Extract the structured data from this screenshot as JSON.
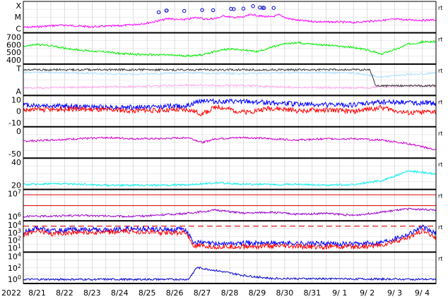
{
  "chart_data": {
    "type": "line",
    "year_label": "2022",
    "x_dates": [
      "8/21",
      "8/22",
      "8/23",
      "8/24",
      "8/25",
      "8/26",
      "8/27",
      "8/28",
      "8/29",
      "8/30",
      "8/31",
      "9/ 1",
      "9/ 2",
      "9/ 3",
      "9/ 4"
    ],
    "corner_mark": "rt",
    "grid": true,
    "panels": [
      {
        "id": "flare",
        "tick_labels": [
          "X",
          "M",
          "C"
        ],
        "series": [
          {
            "color": "#ff00ff",
            "profile": [
              [
                0,
                0.88
              ],
              [
                0.5,
                0.86
              ],
              [
                1,
                0.82
              ],
              [
                1.5,
                0.8
              ],
              [
                2,
                0.83
              ],
              [
                2.5,
                0.86
              ],
              [
                3,
                0.84
              ],
              [
                3.5,
                0.82
              ],
              [
                4,
                0.78
              ],
              [
                4.5,
                0.72
              ],
              [
                5,
                0.62
              ],
              [
                5.3,
                0.55
              ],
              [
                5.6,
                0.6
              ],
              [
                6,
                0.58
              ],
              [
                6.3,
                0.5
              ],
              [
                6.6,
                0.58
              ],
              [
                7,
                0.55
              ],
              [
                7.3,
                0.45
              ],
              [
                7.6,
                0.52
              ],
              [
                8,
                0.5
              ],
              [
                8.3,
                0.4
              ],
              [
                8.6,
                0.46
              ],
              [
                9,
                0.5
              ],
              [
                9.3,
                0.42
              ],
              [
                9.6,
                0.55
              ],
              [
                10,
                0.62
              ],
              [
                10.5,
                0.66
              ],
              [
                11,
                0.68
              ],
              [
                11.5,
                0.68
              ],
              [
                12,
                0.7
              ],
              [
                12.5,
                0.66
              ],
              [
                13,
                0.62
              ],
              [
                13.5,
                0.58
              ],
              [
                14,
                0.6
              ],
              [
                14.5,
                0.62
              ],
              [
                15,
                0.6
              ]
            ]
          }
        ],
        "markers_x": [
          4.92,
          5.2,
          5.21,
          5.85,
          6.5,
          6.9,
          7.55,
          7.65,
          8.0,
          8.35,
          8.6,
          8.7,
          8.75,
          9.1
        ]
      },
      {
        "id": "wind_speed",
        "tick_labels": [
          "700",
          "600",
          "500",
          "400"
        ],
        "y_range": [
          300,
          750
        ],
        "series": [
          {
            "color": "#00ee00",
            "profile": [
              [
                0,
                560
              ],
              [
                0.5,
                590
              ],
              [
                1,
                570
              ],
              [
                1.5,
                530
              ],
              [
                2,
                500
              ],
              [
                2.5,
                480
              ],
              [
                3,
                470
              ],
              [
                3.5,
                440
              ],
              [
                4,
                430
              ],
              [
                4.5,
                420
              ],
              [
                5,
                420
              ],
              [
                5.5,
                410
              ],
              [
                6,
                400
              ],
              [
                6.5,
                420
              ],
              [
                7,
                480
              ],
              [
                7.5,
                520
              ],
              [
                8,
                500
              ],
              [
                8.5,
                470
              ],
              [
                9,
                540
              ],
              [
                9.5,
                600
              ],
              [
                10,
                620
              ],
              [
                10.5,
                600
              ],
              [
                11,
                580
              ],
              [
                11.5,
                560
              ],
              [
                12,
                540
              ],
              [
                12.5,
                500
              ],
              [
                13,
                430
              ],
              [
                13.3,
                480
              ],
              [
                13.6,
                520
              ],
              [
                14,
                600
              ],
              [
                14.5,
                630
              ],
              [
                15,
                640
              ]
            ]
          }
        ]
      },
      {
        "id": "t_a",
        "tick_labels": [
          "T",
          "A"
        ],
        "series": [
          {
            "color": "#aaddff",
            "profile": [
              [
                0,
                0.22
              ],
              [
                2,
                0.25
              ],
              [
                4,
                0.3
              ],
              [
                6,
                0.24
              ],
              [
                8,
                0.28
              ],
              [
                10,
                0.23
              ],
              [
                12,
                0.25
              ],
              [
                13,
                0.4
              ],
              [
                14,
                0.3
              ],
              [
                15,
                0.26
              ]
            ]
          },
          {
            "color": "#ffaaee",
            "profile": [
              [
                0,
                0.8
              ],
              [
                4,
                0.75
              ],
              [
                6,
                0.7
              ],
              [
                8,
                0.72
              ],
              [
                10,
                0.78
              ],
              [
                12.6,
                0.8
              ],
              [
                13,
                0.75
              ],
              [
                15,
                0.72
              ]
            ]
          },
          {
            "color": "#333333",
            "profile": [
              [
                0,
                0.13
              ],
              [
                12.6,
                0.13
              ],
              [
                12.8,
                0.72
              ],
              [
                15,
                0.72
              ]
            ]
          }
        ]
      },
      {
        "id": "b_field",
        "tick_labels": [
          "10",
          "0",
          "-10"
        ],
        "y_range": [
          -18,
          15
        ],
        "series": [
          {
            "color": "#0000ff",
            "profile": [
              [
                0,
                6
              ],
              [
                2,
                4
              ],
              [
                4,
                3
              ],
              [
                6,
                5
              ],
              [
                6.5,
                12
              ],
              [
                7,
                10
              ],
              [
                8,
                10
              ],
              [
                9,
                9
              ],
              [
                10,
                7
              ],
              [
                11,
                6
              ],
              [
                12,
                6
              ],
              [
                13,
                10
              ],
              [
                14,
                9
              ],
              [
                15,
                8
              ]
            ]
          },
          {
            "color": "#ff0000",
            "profile": [
              [
                0,
                0
              ],
              [
                2,
                1
              ],
              [
                4,
                -1
              ],
              [
                6,
                0
              ],
              [
                6.5,
                -5
              ],
              [
                7,
                4
              ],
              [
                8,
                -3
              ],
              [
                9,
                2
              ],
              [
                10,
                -1
              ],
              [
                11,
                0
              ],
              [
                12,
                -2
              ],
              [
                13,
                3
              ],
              [
                14,
                -4
              ],
              [
                15,
                -2
              ]
            ]
          }
        ]
      },
      {
        "id": "theta",
        "tick_labels": [
          "0",
          "-50"
        ],
        "y_range": [
          -90,
          20
        ],
        "series": [
          {
            "color": "#cc00cc",
            "profile": [
              [
                0,
                -30
              ],
              [
                1,
                -25
              ],
              [
                2,
                -20
              ],
              [
                3,
                -15
              ],
              [
                4,
                -20
              ],
              [
                5,
                -20
              ],
              [
                6,
                -15
              ],
              [
                6.5,
                -35
              ],
              [
                7,
                -20
              ],
              [
                8,
                -15
              ],
              [
                9,
                -20
              ],
              [
                10,
                -25
              ],
              [
                11,
                -20
              ],
              [
                12,
                -20
              ],
              [
                13,
                -25
              ],
              [
                14,
                -40
              ],
              [
                15,
                -65
              ]
            ]
          }
        ]
      },
      {
        "id": "density",
        "tick_labels": [
          "40",
          "20"
        ],
        "y_range": [
          0,
          50
        ],
        "series": [
          {
            "color": "#00eeee",
            "profile": [
              [
                0,
                5
              ],
              [
                1,
                7
              ],
              [
                2,
                6
              ],
              [
                3,
                4
              ],
              [
                4,
                4
              ],
              [
                5,
                4
              ],
              [
                6,
                5
              ],
              [
                7,
                8
              ],
              [
                8,
                6
              ],
              [
                9,
                5
              ],
              [
                10,
                6
              ],
              [
                11,
                4
              ],
              [
                12,
                5
              ],
              [
                13,
                12
              ],
              [
                14,
                30
              ],
              [
                14.5,
                28
              ],
              [
                15,
                24
              ]
            ]
          }
        ]
      },
      {
        "id": "temperature",
        "tick_labels": [
          "10^7",
          "10^6"
        ],
        "reference_lines": [
          7.0,
          6.0
        ],
        "y_range": [
          4.8,
          7.3
        ],
        "series": [
          {
            "color": "#9900cc",
            "profile": [
              [
                0,
                5.0
              ],
              [
                2,
                5.1
              ],
              [
                4,
                5.0
              ],
              [
                6,
                5.3
              ],
              [
                7,
                5.6
              ],
              [
                8,
                5.3
              ],
              [
                9,
                5.4
              ],
              [
                10,
                5.2
              ],
              [
                11,
                5.3
              ],
              [
                12,
                5.1
              ],
              [
                13,
                5.4
              ],
              [
                14,
                5.7
              ],
              [
                15,
                5.6
              ]
            ]
          }
        ]
      },
      {
        "id": "proton_flux",
        "tick_labels": [
          "10^4",
          "10^3",
          "10^2",
          "10^1"
        ],
        "dashed_line": 4.0,
        "y_range": [
          0.3,
          4.5
        ],
        "series": [
          {
            "color": "#0000ff",
            "profile": [
              [
                0,
                3.0
              ],
              [
                0.5,
                3.8
              ],
              [
                1,
                3.2
              ],
              [
                2,
                3.5
              ],
              [
                3,
                3.4
              ],
              [
                4,
                3.6
              ],
              [
                5,
                3.5
              ],
              [
                5.9,
                3.5
              ],
              [
                6.2,
                1.5
              ],
              [
                7,
                1.3
              ],
              [
                9,
                1.4
              ],
              [
                11,
                1.3
              ],
              [
                12,
                1.2
              ],
              [
                13,
                1.5
              ],
              [
                14,
                2.8
              ],
              [
                14.5,
                3.9
              ],
              [
                15,
                2.8
              ]
            ]
          },
          {
            "color": "#ff0000",
            "profile": [
              [
                0,
                2.6
              ],
              [
                0.5,
                3.4
              ],
              [
                1,
                2.8
              ],
              [
                2,
                3.1
              ],
              [
                3,
                3.0
              ],
              [
                4,
                3.2
              ],
              [
                5,
                3.0
              ],
              [
                5.9,
                3.0
              ],
              [
                6.2,
                0.9
              ],
              [
                7,
                0.8
              ],
              [
                9,
                0.9
              ],
              [
                11,
                0.8
              ],
              [
                12,
                0.8
              ],
              [
                13,
                1.0
              ],
              [
                14,
                2.2
              ],
              [
                14.5,
                3.3
              ],
              [
                15,
                2.2
              ]
            ]
          }
        ]
      },
      {
        "id": "electron_flux",
        "tick_labels": [
          "10^4",
          "10^2",
          "10^0"
        ],
        "y_range": [
          -1,
          4.5
        ],
        "series": [
          {
            "color": "#0000cc",
            "profile": [
              [
                0,
                -0.6
              ],
              [
                6,
                -0.6
              ],
              [
                6.3,
                1.8
              ],
              [
                7,
                1.2
              ],
              [
                8,
                0.2
              ],
              [
                9,
                -0.4
              ],
              [
                15,
                -0.6
              ]
            ]
          }
        ]
      }
    ]
  }
}
